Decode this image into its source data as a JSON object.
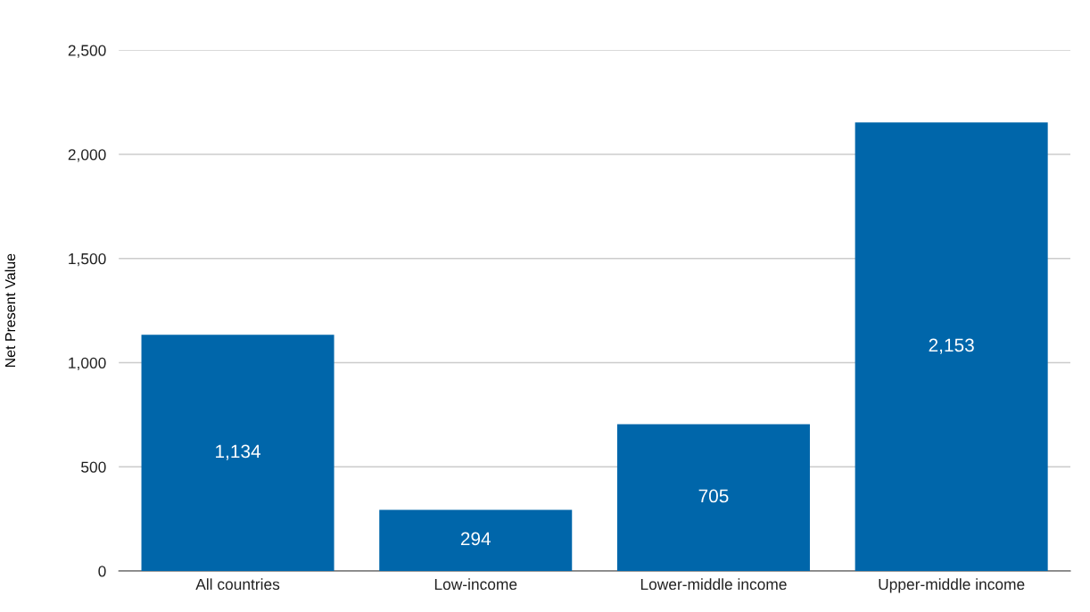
{
  "chart_data": {
    "type": "bar",
    "ylabel": "Net Present Value",
    "categories": [
      "All countries",
      "Low-income",
      "Lower-middle income",
      "Upper-middle income"
    ],
    "values": [
      1134,
      294,
      705,
      2153
    ],
    "value_labels": [
      "1,134",
      "294",
      "705",
      "2,153"
    ],
    "color": "#0066aa",
    "ylim": [
      0,
      2500
    ],
    "yticks": [
      {
        "value": 0,
        "label": "0"
      },
      {
        "value": 500,
        "label": "500"
      },
      {
        "value": 1000,
        "label": "1,000"
      },
      {
        "value": 1500,
        "label": "1,500"
      },
      {
        "value": 2000,
        "label": "2,000"
      },
      {
        "value": 2500,
        "label": "2,500"
      }
    ],
    "grid": "y"
  }
}
